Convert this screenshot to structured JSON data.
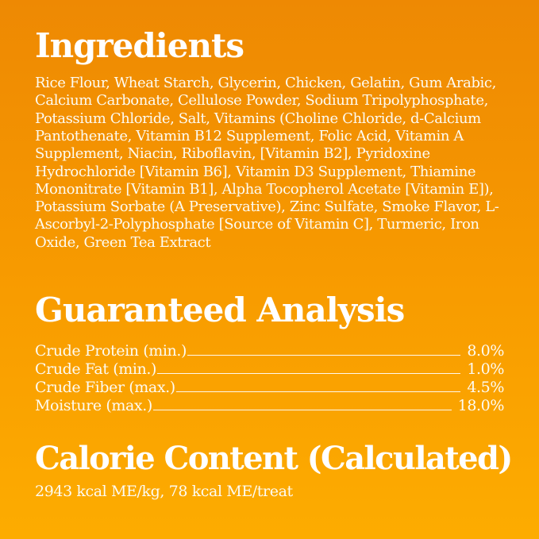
{
  "theme": {
    "background_top": "#EE8903",
    "background_bottom": "#FDAC00",
    "text_color": "#FFFFFF"
  },
  "ingredients": {
    "heading": "Ingredients",
    "text": "Rice Flour, Wheat Starch, Glycerin, Chicken, Gelatin, Gum Arabic, Calcium Carbonate, Cellulose Powder, Sodium Tripolyphosphate, Potassium Chloride, Salt, Vitamins (Choline Chloride, d-Calcium Pantothenate, Vitamin B12 Supplement, Folic Acid, Vitamin A Supplement, Niacin, Riboflavin, [Vitamin B2], Pyridoxine Hydrochloride [Vitamin B6], Vitamin D3 Supplement, Thiamine Mononitrate [Vitamin B1], Alpha Tocopherol Acetate [Vitamin E]), Potassium Sorbate (A Preservative), Zinc Sulfate, Smoke Flavor, L-Ascorbyl-2-Polyphosphate [Source of Vitamin C], Turmeric, Iron Oxide, Green Tea Extract"
  },
  "guaranteed_analysis": {
    "heading": "Guaranteed Analysis",
    "rows": [
      {
        "label": "Crude Protein (min.)",
        "value": "8.0%"
      },
      {
        "label": "Crude Fat (min.)",
        "value": "1.0%"
      },
      {
        "label": "Crude Fiber (max.)",
        "value": "4.5%"
      },
      {
        "label": "Moisture (max.)",
        "value": "18.0%"
      }
    ]
  },
  "calorie_content": {
    "heading": "Calorie Content (Calculated)",
    "text": "2943 kcal ME/kg, 78 kcal ME/treat"
  }
}
